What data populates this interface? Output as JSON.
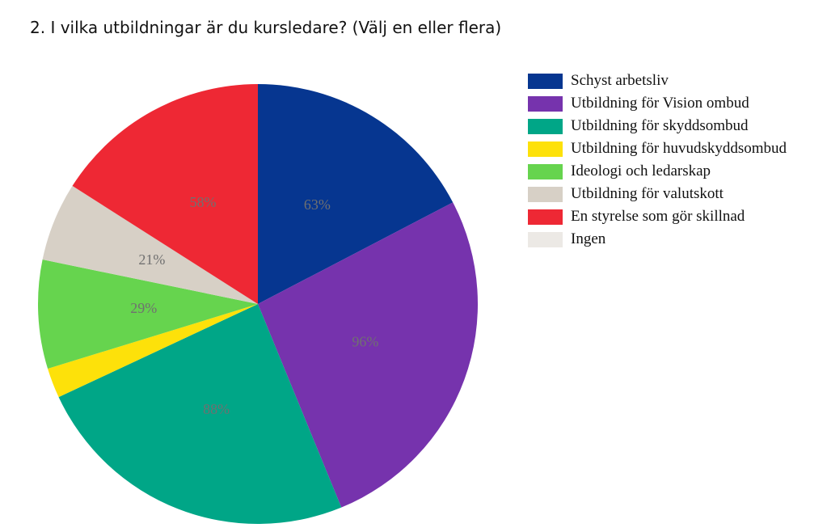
{
  "title": "2. I vilka utbildningar är du kursledare? (Välj en eller flera)",
  "chart_data": {
    "type": "pie",
    "title": "2. I vilka utbildningar är du kursledare? (Välj en eller flera)",
    "legend_position": "right",
    "slices": [
      {
        "label": "Schyst arbetsliv",
        "value": 63,
        "value_label": "63%",
        "color": "#063690"
      },
      {
        "label": "Utbildning för Vision ombud",
        "value": 96,
        "value_label": "96%",
        "color": "#7633ad"
      },
      {
        "label": "Utbildning för skyddsombud",
        "value": 88,
        "value_label": "88%",
        "color": "#00a687"
      },
      {
        "label": "Utbildning för huvudskyddsombud",
        "value": 8,
        "value_label": "",
        "color": "#fde10a"
      },
      {
        "label": "Ideologi och ledarskap",
        "value": 29,
        "value_label": "29%",
        "color": "#66d44e"
      },
      {
        "label": "Utbildning för valutskott",
        "value": 21,
        "value_label": "21%",
        "color": "#d7d0c6"
      },
      {
        "label": "En styrelse som gör skillnad",
        "value": 58,
        "value_label": "58%",
        "color": "#ee2834"
      },
      {
        "label": "Ingen",
        "value": 0,
        "value_label": "",
        "color": "#ece9e5"
      }
    ]
  }
}
